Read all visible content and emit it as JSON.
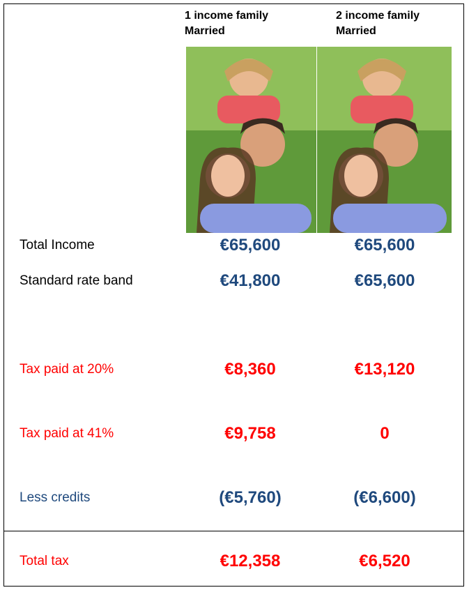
{
  "header": {
    "columns": [
      {
        "line1": "1 income family",
        "line2": "Married"
      },
      {
        "line1": "2 income family",
        "line2": "Married"
      }
    ]
  },
  "table": {
    "rows": [
      {
        "label": "Total Income",
        "values": [
          "€65,600",
          "€65,600"
        ]
      },
      {
        "label": "Standard rate band",
        "values": [
          "€41,800",
          "€65,600"
        ]
      },
      {
        "label": "Tax paid at 20%",
        "values": [
          "€8,360",
          "€13,120"
        ]
      },
      {
        "label": "Tax paid at 41%",
        "values": [
          "€9,758",
          "0"
        ]
      },
      {
        "label": "Less credits",
        "values": [
          "(€5,760)",
          "(€6,600)"
        ]
      },
      {
        "label": "Total tax",
        "values": [
          "€12,358",
          "€6,520"
        ]
      }
    ]
  }
}
